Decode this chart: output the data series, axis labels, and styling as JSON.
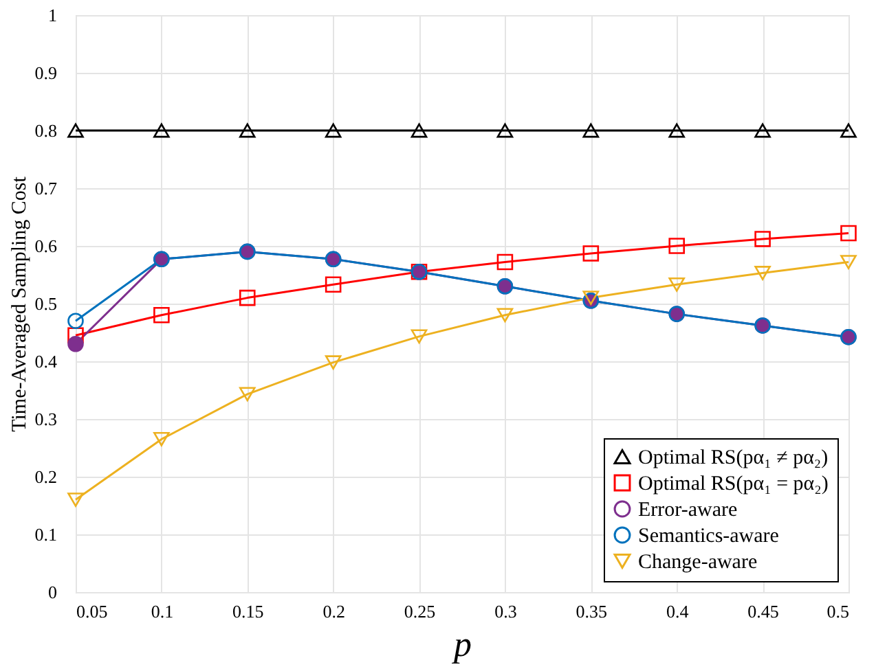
{
  "chart_data": {
    "type": "line",
    "xlabel": "p",
    "ylabel": "Time-Averaged Sampling Cost",
    "x": [
      0.05,
      0.1,
      0.15,
      0.2,
      0.25,
      0.3,
      0.35,
      0.4,
      0.45,
      0.5
    ],
    "series": [
      {
        "name": "Optimal RS(pα₁ ≠ pα₂)",
        "color": "#000000",
        "marker": "triangle",
        "values": [
          0.8,
          0.8,
          0.8,
          0.8,
          0.8,
          0.8,
          0.8,
          0.8,
          0.8,
          0.8
        ]
      },
      {
        "name": "Optimal RS(pα₁ = pα₂)",
        "color": "#ff0000",
        "marker": "square",
        "values": [
          0.445,
          0.48,
          0.51,
          0.533,
          0.555,
          0.572,
          0.587,
          0.6,
          0.612,
          0.622
        ]
      },
      {
        "name": "Error-aware",
        "color": "#7e2f8e",
        "marker": "filled circle",
        "values": [
          0.43,
          0.577,
          0.59,
          0.577,
          0.555,
          0.53,
          0.505,
          0.482,
          0.462,
          0.442
        ]
      },
      {
        "name": "Semantics-aware",
        "color": "#0072bd",
        "marker": "circle",
        "values": [
          0.47,
          0.577,
          0.59,
          0.577,
          0.555,
          0.53,
          0.505,
          0.482,
          0.462,
          0.442
        ]
      },
      {
        "name": "Change-aware",
        "color": "#edb120",
        "marker": "triangle-down",
        "values": [
          0.16,
          0.265,
          0.343,
          0.398,
          0.443,
          0.48,
          0.51,
          0.533,
          0.553,
          0.572
        ]
      }
    ],
    "xlim": [
      0.05,
      0.5
    ],
    "xticks": [
      0.05,
      0.1,
      0.15,
      0.2,
      0.25,
      0.3,
      0.35,
      0.4,
      0.45,
      0.5
    ],
    "ylim": [
      0,
      1
    ],
    "yticks": [
      0,
      0.1,
      0.2,
      0.3,
      0.4,
      0.5,
      0.6,
      0.7,
      0.8,
      0.9,
      1
    ],
    "grid": true,
    "legend": "bottom right",
    "line_style": "solid"
  }
}
